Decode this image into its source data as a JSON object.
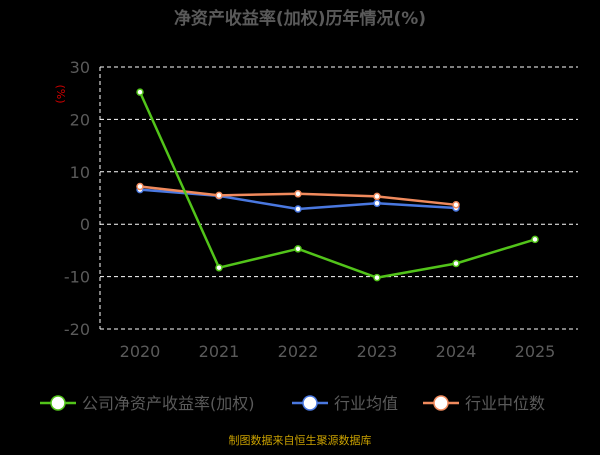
{
  "chart_data": {
    "type": "line",
    "title": "净资产收益率(加权)历年情况(%)",
    "ylabel": "(%)",
    "xlabel": "",
    "categories": [
      "2020",
      "2021",
      "2022",
      "2023",
      "2024",
      "2025"
    ],
    "yticks": [
      30,
      20,
      10,
      0,
      -10,
      -20
    ],
    "ylim": [
      -20,
      30
    ],
    "grid": true,
    "legend_position": "bottom",
    "series": [
      {
        "name": "公司净资产收益率(加权)",
        "values": [
          25.2,
          -8.3,
          -4.7,
          -10.2,
          -7.5,
          -2.9
        ],
        "color": "#52c41a"
      },
      {
        "name": "行业均值",
        "values": [
          6.6,
          5.4,
          2.9,
          4.0,
          3.1,
          null
        ],
        "color": "#4a78e0"
      },
      {
        "name": "行业中位数",
        "values": [
          7.2,
          5.5,
          5.8,
          5.3,
          3.7,
          null
        ],
        "color": "#f08a5d"
      }
    ]
  },
  "source_note": "制图数据来自恒生聚源数据库",
  "colors": {
    "background": "#000000",
    "title": "#5a5a5a",
    "axis_text": "#5a5a5a",
    "ylabel": "#d00000",
    "grid": "#ffffff",
    "source_note": "#c8a000"
  }
}
